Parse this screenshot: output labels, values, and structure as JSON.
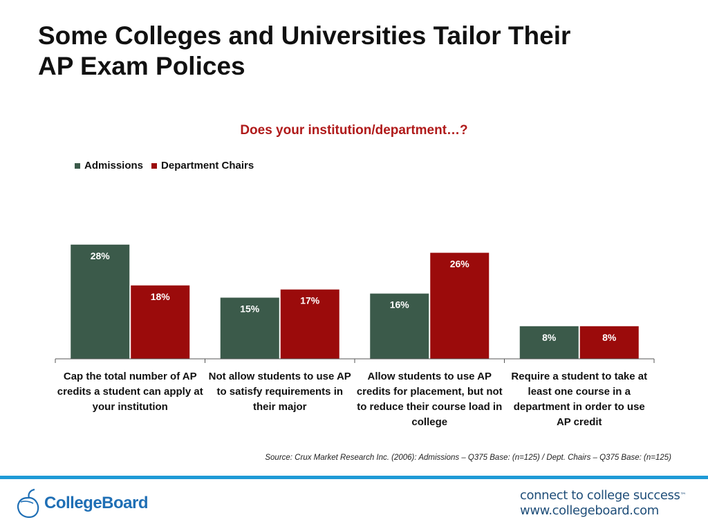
{
  "slide": {
    "title_line1": "Some Colleges and Universities Tailor Their",
    "title_line2": "AP Exam Polices",
    "source": "Source: Crux Market Research Inc. (2006): Admissions – Q375 Base: (n=125) / Dept. Chairs – Q375 Base: (n=125)"
  },
  "footer": {
    "logo_text": "CollegeBoard",
    "tagline_line1": "connect to college success",
    "tagline_tm": "™",
    "tagline_line2": "www.collegeboard.com"
  },
  "chart_data": {
    "type": "bar",
    "title": "Does your institution/department…?",
    "categories": [
      "Cap the total number of AP credits a student can apply at your institution",
      "Not allow students to use AP to satisfy requirements in their major",
      "Allow students to use AP credits for placement, but not to reduce their course load in college",
      "Require a student to take at least one course in a department in order to use AP credit"
    ],
    "series": [
      {
        "name": "Admissions",
        "color": "#3b5a4a",
        "values": [
          28,
          15,
          16,
          8
        ],
        "labels": [
          "28%",
          "15%",
          "16%",
          "8%"
        ]
      },
      {
        "name": "Department Chairs",
        "color": "#9b0b0b",
        "values": [
          18,
          17,
          26,
          8
        ],
        "labels": [
          "18%",
          "17%",
          "26%",
          "8%"
        ]
      }
    ],
    "ylim": [
      0,
      30
    ],
    "grid": false,
    "legend": "top-left"
  }
}
